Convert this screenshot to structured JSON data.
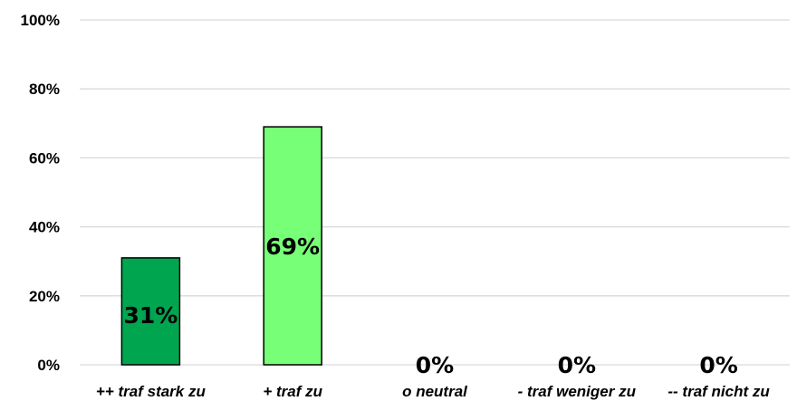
{
  "chart_data": {
    "type": "bar",
    "categories": [
      "++ traf stark zu",
      "+ traf zu",
      "o neutral",
      "- traf weniger zu",
      "-- traf nicht zu"
    ],
    "values": [
      31,
      69,
      0,
      0,
      0
    ],
    "data_labels": [
      "31%",
      "69%",
      "0%",
      "0%",
      "0%"
    ],
    "bar_colors": [
      "#00A550",
      "#77FF77",
      "#77FF77",
      "#77FF77",
      "#77FF77"
    ],
    "y_ticks": [
      "0%",
      "20%",
      "40%",
      "60%",
      "80%",
      "100%"
    ],
    "y_tick_values": [
      0,
      20,
      40,
      60,
      80,
      100
    ],
    "ylim": [
      0,
      100
    ],
    "grid": true,
    "legend": false
  }
}
